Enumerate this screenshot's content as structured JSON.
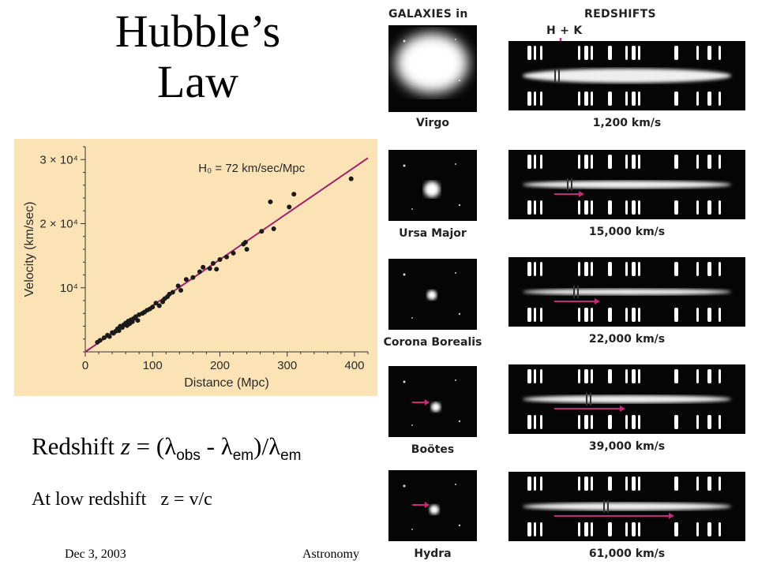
{
  "slide": {
    "title_line1": "Hubble’s",
    "title_line2": "Law",
    "formula": {
      "prefix": "Redshift ",
      "var_z": "z",
      "eq": " = (",
      "lambda": "λ",
      "sub_obs": "obs",
      "minus": " - ",
      "sub_em": "em",
      "close": ")/"
    },
    "low_redshift": "At low redshift   z = v/c",
    "footer_date": "Dec 3, 2003",
    "footer_course": "Astronomy"
  },
  "chart_data": {
    "type": "scatter",
    "annotation": "H₀ = 72 km/sec/Mpc",
    "xlabel": "Distance (Mpc)",
    "ylabel": "Velocity (km/sec)",
    "xlim": [
      0,
      420
    ],
    "ylim": [
      0,
      32000
    ],
    "x_ticks": [
      0,
      100,
      200,
      300,
      400
    ],
    "x_tick_labels": [
      "0",
      "100",
      "200",
      "300",
      "400"
    ],
    "y_ticks": [
      10000,
      20000,
      30000
    ],
    "y_tick_labels": [
      "10⁴",
      "2 × 10⁴",
      "3 × 10⁴"
    ],
    "fit_line": {
      "slope": 72,
      "color": "#a0206a"
    },
    "points": [
      [
        18,
        1500
      ],
      [
        22,
        1800
      ],
      [
        28,
        2200
      ],
      [
        33,
        2600
      ],
      [
        36,
        2400
      ],
      [
        40,
        3000
      ],
      [
        42,
        2900
      ],
      [
        45,
        3200
      ],
      [
        48,
        3600
      ],
      [
        50,
        3300
      ],
      [
        52,
        4000
      ],
      [
        55,
        3800
      ],
      [
        57,
        4200
      ],
      [
        60,
        4500
      ],
      [
        62,
        4100
      ],
      [
        64,
        4800
      ],
      [
        66,
        4400
      ],
      [
        68,
        5000
      ],
      [
        70,
        4700
      ],
      [
        72,
        5200
      ],
      [
        75,
        5500
      ],
      [
        78,
        4900
      ],
      [
        80,
        5800
      ],
      [
        85,
        6000
      ],
      [
        88,
        6200
      ],
      [
        92,
        6500
      ],
      [
        96,
        6700
      ],
      [
        100,
        7000
      ],
      [
        105,
        7600
      ],
      [
        110,
        7200
      ],
      [
        115,
        7800
      ],
      [
        118,
        8300
      ],
      [
        122,
        8600
      ],
      [
        125,
        9000
      ],
      [
        130,
        9300
      ],
      [
        138,
        10300
      ],
      [
        142,
        9600
      ],
      [
        150,
        11300
      ],
      [
        160,
        11600
      ],
      [
        170,
        12500
      ],
      [
        175,
        13200
      ],
      [
        185,
        13000
      ],
      [
        190,
        13800
      ],
      [
        195,
        12900
      ],
      [
        200,
        14400
      ],
      [
        210,
        14800
      ],
      [
        220,
        15400
      ],
      [
        235,
        16800
      ],
      [
        238,
        17100
      ],
      [
        240,
        16000
      ],
      [
        262,
        18800
      ],
      [
        275,
        23400
      ],
      [
        280,
        19200
      ],
      [
        303,
        22600
      ],
      [
        310,
        24600
      ],
      [
        395,
        27000
      ]
    ]
  },
  "figure": {
    "header_left": "GALAXIES in",
    "header_right": "REDSHIFTS",
    "hk_label": "H + K",
    "galaxies": [
      {
        "name": "Virgo",
        "velocity": "1,200 km/s"
      },
      {
        "name": "Ursa Major",
        "velocity": "15,000 km/s"
      },
      {
        "name": "Corona Borealis",
        "velocity": "22,000 km/s"
      },
      {
        "name": "Boötes",
        "velocity": "39,000 km/s"
      },
      {
        "name": "Hydra",
        "velocity": "61,000 km/s"
      }
    ],
    "arrow_color": "#d0237a"
  }
}
